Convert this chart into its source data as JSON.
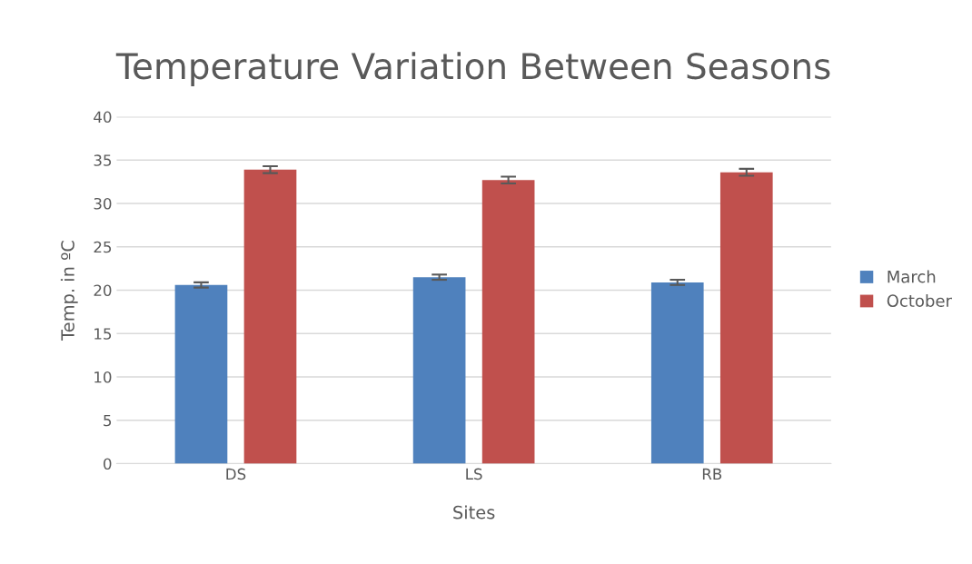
{
  "chart_data": {
    "type": "bar",
    "title": "Temperature Variation Between Seasons",
    "xlabel": "Sites",
    "ylabel": "Temp. in ºC",
    "categories": [
      "DS",
      "LS",
      "RB"
    ],
    "series": [
      {
        "name": "March",
        "color": "#4f81bd",
        "values": [
          20.6,
          21.5,
          20.9
        ],
        "errors": [
          0.3,
          0.3,
          0.3
        ]
      },
      {
        "name": "October",
        "color": "#c0504d",
        "values": [
          33.9,
          32.7,
          33.6
        ],
        "errors": [
          0.4,
          0.4,
          0.4
        ]
      }
    ],
    "ylim": [
      0,
      40
    ],
    "yticks": [
      0,
      5,
      10,
      15,
      20,
      25,
      30,
      35,
      40
    ],
    "grid": "y",
    "legend": "right"
  }
}
